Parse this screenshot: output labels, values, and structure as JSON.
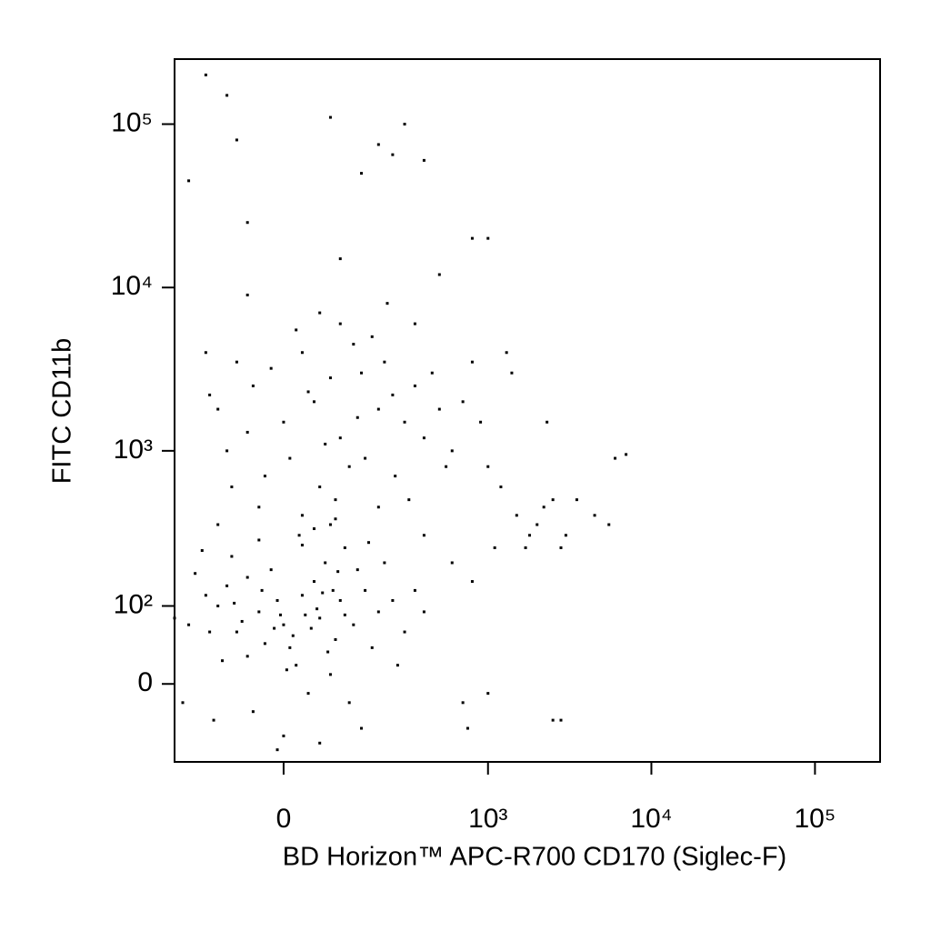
{
  "chart_data": {
    "type": "scatter",
    "x_label": "BD Horizon™ APC-R700 CD170 (Siglec-F)",
    "y_label": "FITC CD11b",
    "xscale": "biexponential",
    "yscale": "biexponential",
    "color": "#000000",
    "xlim": [
      -250,
      250000
    ],
    "ylim": [
      -100,
      250000
    ],
    "xticks": [
      0,
      {
        "value": 1000,
        "label": "10³"
      },
      {
        "value": 10000,
        "label": "10⁴"
      },
      {
        "value": 100000,
        "label": "10⁵"
      }
    ],
    "yticks": [
      0,
      {
        "value": 100,
        "label": "10²"
      },
      {
        "value": 1000,
        "label": "10³"
      },
      {
        "value": 10000,
        "label": "10⁴"
      },
      {
        "value": 100000,
        "label": "10⁵"
      }
    ],
    "x": [
      -80,
      -40,
      0,
      30,
      60,
      90,
      -120,
      -60,
      20,
      50,
      100,
      130,
      -20,
      10,
      70,
      -100,
      -140,
      40,
      80,
      -50,
      0,
      120,
      160,
      -90,
      30,
      -10,
      55,
      -70,
      15,
      85,
      -30,
      110,
      -110,
      140,
      -150,
      200,
      -200,
      180,
      -60,
      25,
      75,
      5,
      -35,
      95,
      -5,
      45,
      65,
      -85,
      35,
      -15,
      150,
      -130,
      60,
      -10,
      250,
      300,
      -180,
      220,
      -250,
      -220,
      350,
      400,
      270,
      -160,
      110,
      170,
      -40,
      50,
      -120,
      90,
      0,
      50,
      100,
      -50,
      150,
      200,
      -100,
      30,
      80,
      120,
      -30,
      60,
      250,
      -80,
      180,
      10,
      300,
      -120,
      70,
      140,
      40,
      -60,
      220,
      100,
      350,
      -20,
      400,
      90,
      160,
      -140,
      20,
      260,
      500,
      450,
      600,
      -90,
      130,
      200,
      30,
      -40,
      80,
      320,
      700,
      550,
      800,
      -150,
      60,
      230,
      -60,
      350,
      1500,
      1800,
      2000,
      2500,
      1700,
      2200,
      3000,
      2800,
      1200,
      1000,
      900,
      1300,
      2300,
      6000,
      7000,
      5500,
      4500,
      3500,
      700,
      750,
      2500,
      2800,
      1000,
      600,
      800,
      1100,
      400,
      1400,
      1000,
      800,
      400,
      300,
      -150,
      -100,
      -80,
      80,
      200,
      150,
      -60,
      100,
      -200,
      500,
      250
    ],
    "values": [
      60,
      90,
      70,
      120,
      80,
      50,
      100,
      30,
      20,
      150,
      110,
      70,
      180,
      40,
      200,
      140,
      60,
      -10,
      10,
      -30,
      -60,
      -20,
      130,
      220,
      260,
      110,
      95,
      75,
      55,
      130,
      45,
      85,
      25,
      180,
      120,
      90,
      70,
      40,
      160,
      300,
      35,
      15,
      130,
      175,
      85,
      65,
      125,
      105,
      85,
      65,
      -50,
      -40,
      -70,
      -80,
      110,
      60,
      170,
      200,
      80,
      -20,
      130,
      90,
      20,
      240,
      250,
      270,
      280,
      330,
      350,
      380,
      1500,
      2000,
      1200,
      2500,
      3000,
      1800,
      1000,
      4000,
      2800,
      800,
      700,
      600,
      2200,
      3500,
      5000,
      900,
      1500,
      1800,
      1100,
      1600,
      2300,
      1300,
      3500,
      6000,
      2500,
      3200,
      1200,
      500,
      900,
      2200,
      5500,
      700,
      1800,
      3000,
      1000,
      600,
      4500,
      450,
      400,
      450,
      350,
      500,
      2000,
      800,
      3500,
      4000,
      7000,
      8000,
      9000,
      6000,
      400,
      300,
      350,
      500,
      250,
      450,
      300,
      250,
      600,
      800,
      1500,
      4000,
      1500,
      900,
      950,
      350,
      400,
      500,
      -20,
      -50,
      -40,
      -40,
      -10,
      200,
      150,
      250,
      300,
      3000,
      20000,
      20000,
      60000,
      100000,
      200000,
      150000,
      80000,
      110000,
      75000,
      50000,
      25000,
      15000,
      45000,
      12000,
      65000
    ]
  }
}
